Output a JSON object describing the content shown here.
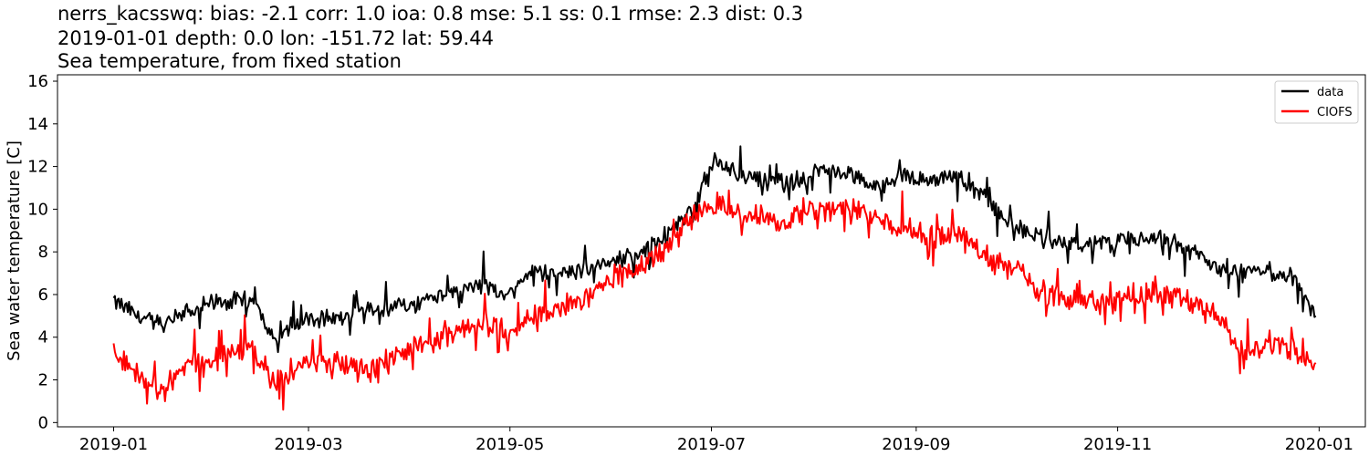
{
  "header": {
    "line1": "nerrs_kacsswq: bias: -2.1  corr: 1.0  ioa: 0.8  mse: 5.1  ss: 0.1  rmse: 2.3  dist: 0.3",
    "line2": "2019-01-01 depth: 0.0 lon: -151.72 lat: 59.44",
    "line3": "Sea temperature, from fixed station"
  },
  "chart_data": {
    "type": "line",
    "title": "nerrs_kacsswq: bias: -2.1  corr: 1.0  ioa: 0.8  mse: 5.1  ss: 0.1  rmse: 2.3  dist: 0.3",
    "subtitle": "2019-01-01 depth: 0.0 lon: -151.72 lat: 59.44 / Sea temperature, from fixed station",
    "xlabel": "",
    "ylabel": "Sea water temperature [C]",
    "xlim": [
      "2018-12-15",
      "2020-01-15"
    ],
    "ylim": [
      -0.2,
      16.3
    ],
    "x_ticks": [
      "2019-01",
      "2019-03",
      "2019-05",
      "2019-07",
      "2019-09",
      "2019-11",
      "2020-01"
    ],
    "y_ticks": [
      0,
      2,
      4,
      6,
      8,
      10,
      12,
      14,
      16
    ],
    "grid": false,
    "legend_position": "top-right",
    "x": [
      "2019-01-01",
      "2019-01-08",
      "2019-01-15",
      "2019-01-22",
      "2019-01-29",
      "2019-02-05",
      "2019-02-12",
      "2019-02-19",
      "2019-02-26",
      "2019-03-05",
      "2019-03-12",
      "2019-03-19",
      "2019-03-26",
      "2019-04-02",
      "2019-04-09",
      "2019-04-16",
      "2019-04-23",
      "2019-04-30",
      "2019-05-07",
      "2019-05-14",
      "2019-05-21",
      "2019-05-28",
      "2019-06-04",
      "2019-06-11",
      "2019-06-18",
      "2019-06-25",
      "2019-07-02",
      "2019-07-09",
      "2019-07-16",
      "2019-07-23",
      "2019-07-30",
      "2019-08-06",
      "2019-08-13",
      "2019-08-20",
      "2019-08-27",
      "2019-09-03",
      "2019-09-10",
      "2019-09-17",
      "2019-09-24",
      "2019-10-01",
      "2019-10-08",
      "2019-10-15",
      "2019-10-22",
      "2019-10-29",
      "2019-11-05",
      "2019-11-12",
      "2019-11-19",
      "2019-11-26",
      "2019-12-03",
      "2019-12-10",
      "2019-12-17",
      "2019-12-24",
      "2019-12-31"
    ],
    "series": [
      {
        "name": "data",
        "color": "#000000",
        "values": [
          5.7,
          5.0,
          4.6,
          5.0,
          5.6,
          5.7,
          5.7,
          4.0,
          4.7,
          4.9,
          5.0,
          5.2,
          5.4,
          5.6,
          6.0,
          6.3,
          6.5,
          5.9,
          7.0,
          7.0,
          7.1,
          7.4,
          7.7,
          8.1,
          8.8,
          10.0,
          12.3,
          11.6,
          11.5,
          11.2,
          11.6,
          11.9,
          11.5,
          11.0,
          11.6,
          11.3,
          11.6,
          11.2,
          10.2,
          9.2,
          8.7,
          8.3,
          8.2,
          8.4,
          8.6,
          8.5,
          8.4,
          7.8,
          7.0,
          7.0,
          7.1,
          6.8,
          5.0
        ]
      },
      {
        "name": "CIOFS",
        "color": "#ff0000",
        "values": [
          3.2,
          2.2,
          1.6,
          2.5,
          2.9,
          3.2,
          3.5,
          1.8,
          2.8,
          2.8,
          2.8,
          2.4,
          3.1,
          3.6,
          4.0,
          4.3,
          4.6,
          4.2,
          4.9,
          5.2,
          5.6,
          6.3,
          6.9,
          7.6,
          8.3,
          9.5,
          10.4,
          9.8,
          9.6,
          9.3,
          9.9,
          10.0,
          9.9,
          9.6,
          9.2,
          8.9,
          8.8,
          8.6,
          7.5,
          7.2,
          6.3,
          5.9,
          5.6,
          5.6,
          6.0,
          6.1,
          5.8,
          5.6,
          4.6,
          3.2,
          3.8,
          3.4,
          2.8
        ]
      }
    ]
  }
}
